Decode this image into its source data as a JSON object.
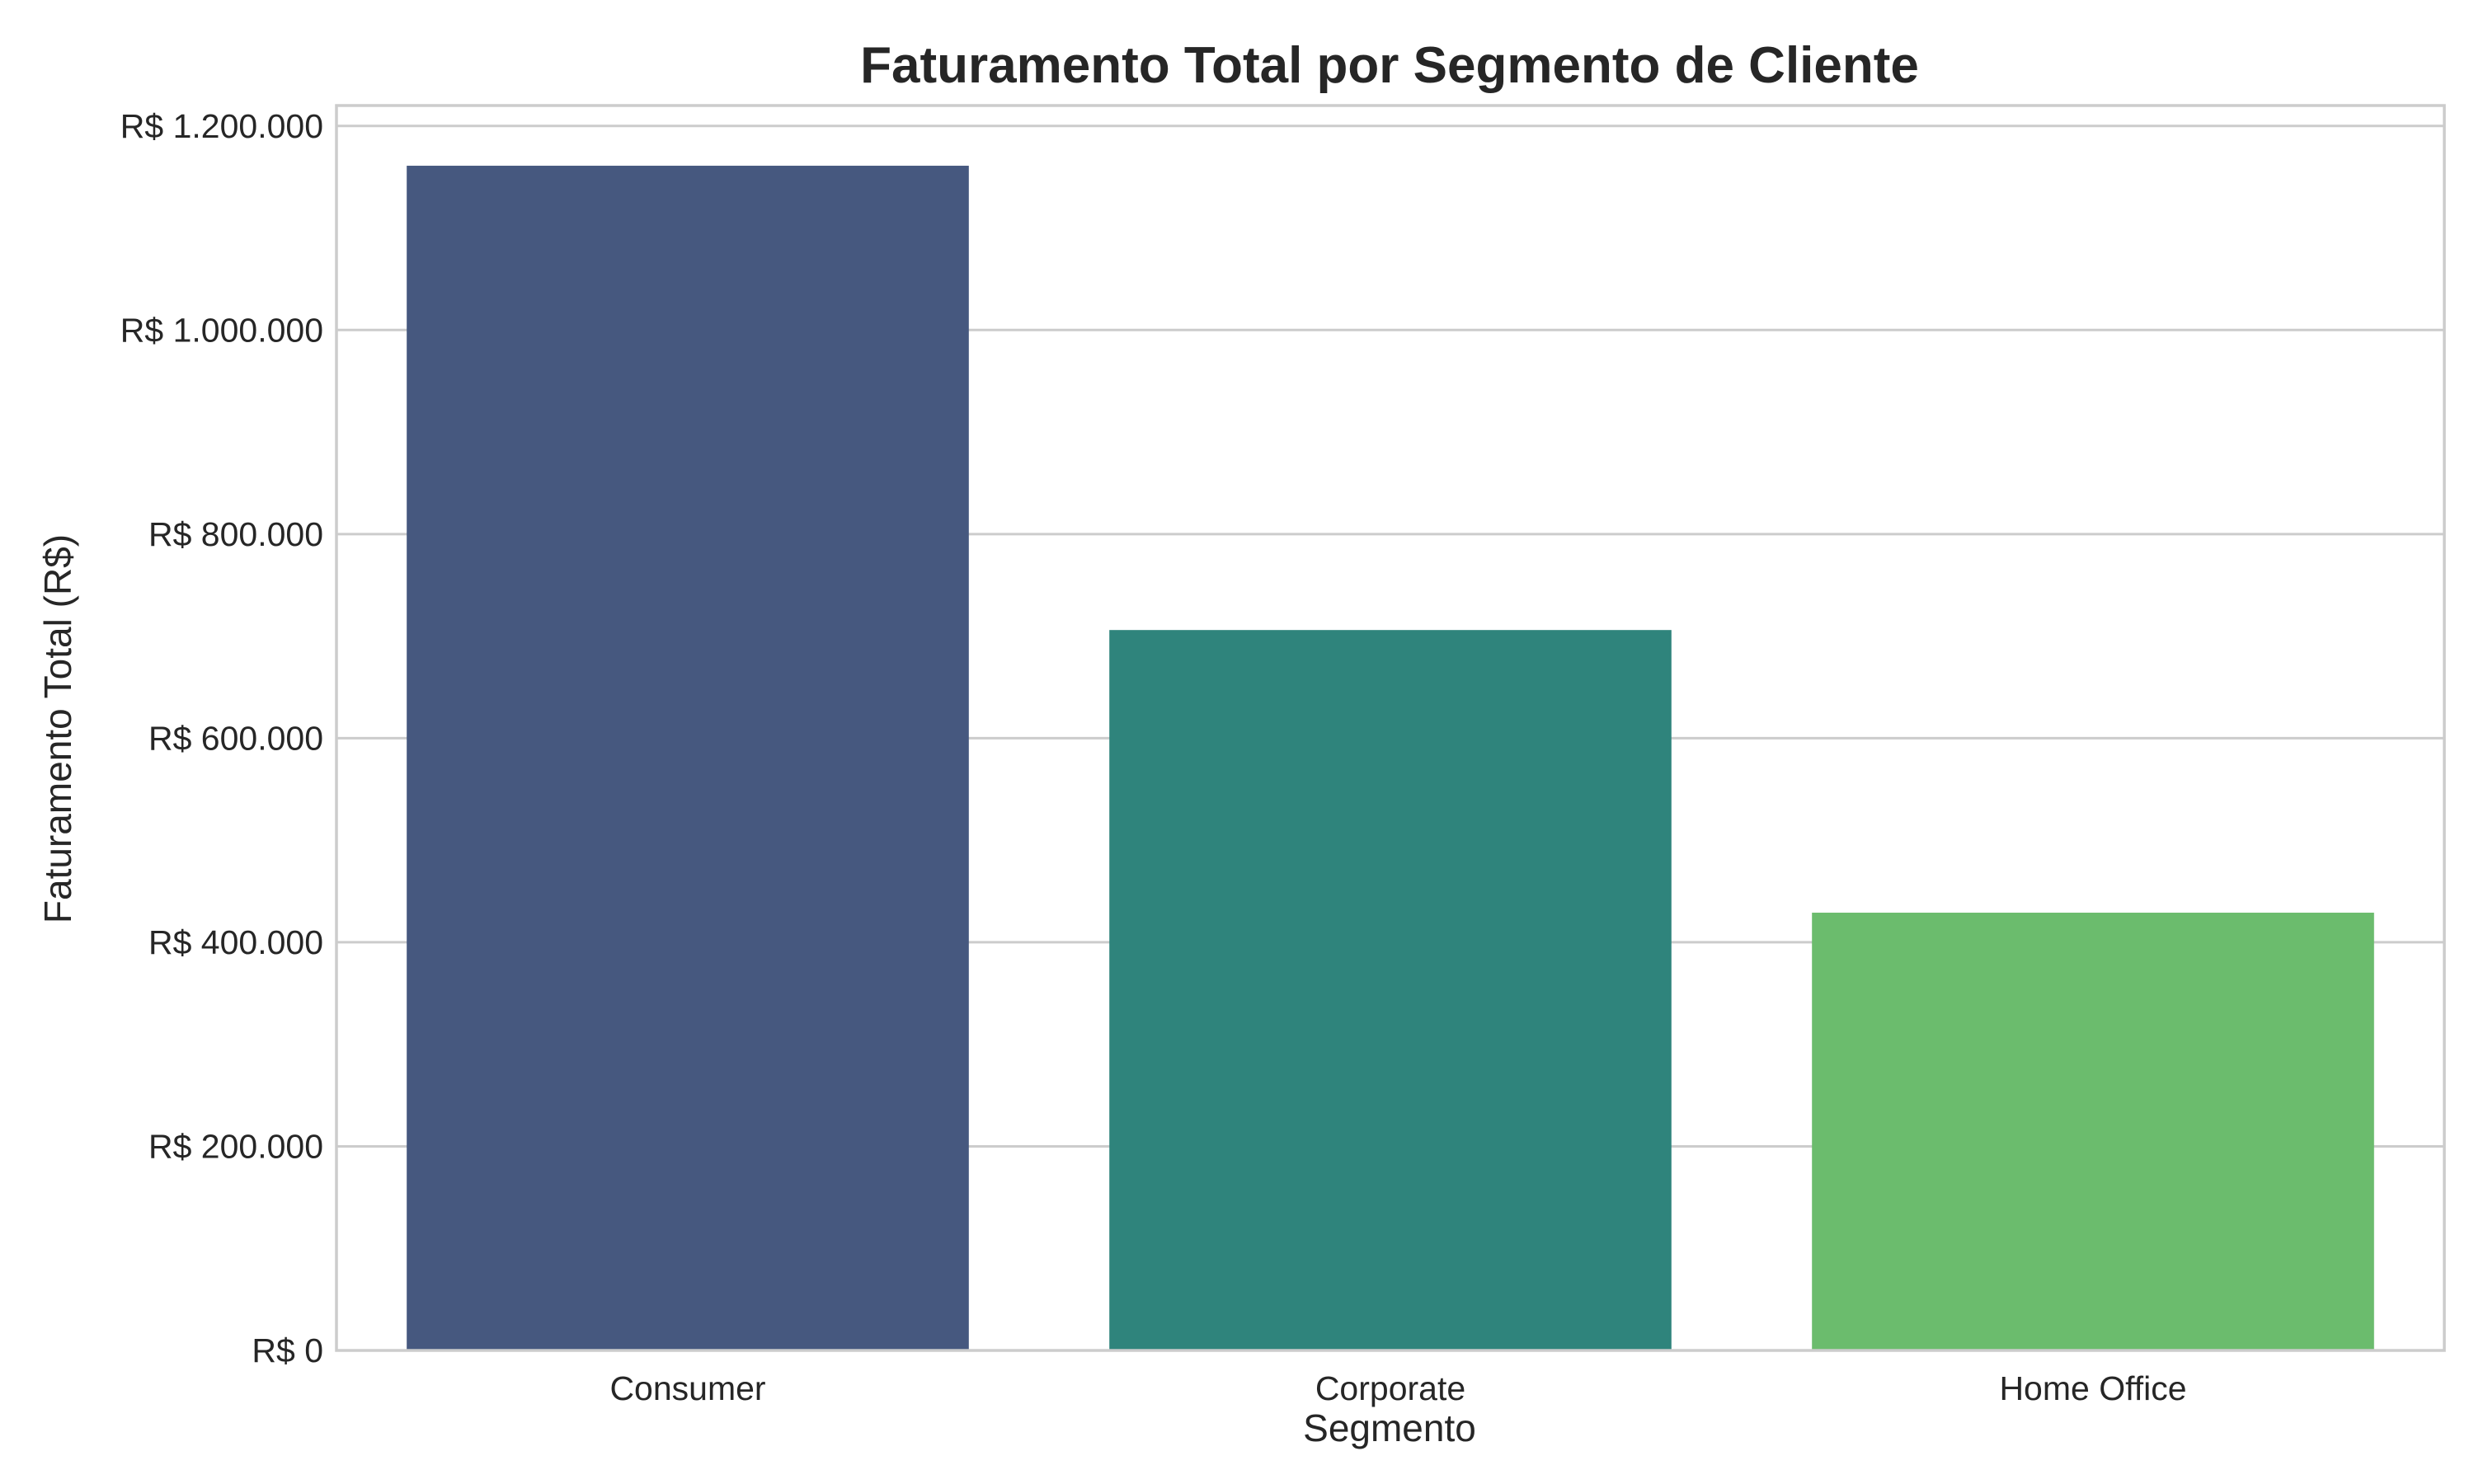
{
  "chart_data": {
    "type": "bar",
    "title": "Faturamento Total por Segmento de Cliente",
    "xlabel": "Segmento",
    "ylabel": "Faturamento Total (R$)",
    "categories": [
      "Consumer",
      "Corporate",
      "Home Office"
    ],
    "values": [
      1161000,
      706000,
      429000
    ],
    "colors": [
      "#46587f",
      "#2f847c",
      "#6bbc6d"
    ],
    "ylim": [
      0,
      1220000
    ],
    "yticks": [
      0,
      200000,
      400000,
      600000,
      800000,
      1000000,
      1200000
    ],
    "ytick_labels": [
      "R$ 0",
      "R$ 200.000",
      "R$ 400.000",
      "R$ 600.000",
      "R$ 800.000",
      "R$ 1.000.000",
      "R$ 1.200.000"
    ],
    "grid": true,
    "legend": "none"
  }
}
